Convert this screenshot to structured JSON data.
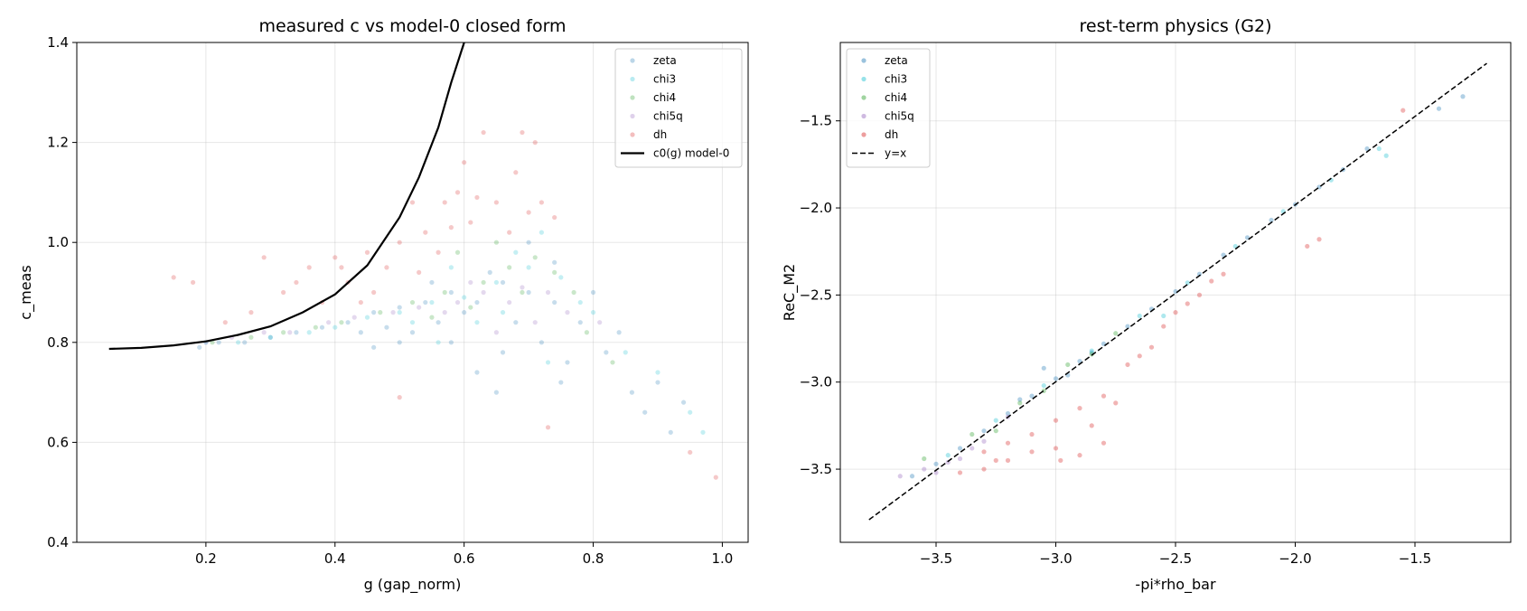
{
  "chart_data": [
    {
      "type": "scatter",
      "title": "measured c vs model-0 closed form",
      "xlabel": "g (gap_norm)",
      "ylabel": "c_meas",
      "xlim": [
        0.0,
        1.04
      ],
      "ylim": [
        0.4,
        1.4
      ],
      "xticks": [
        0.2,
        0.4,
        0.6,
        0.8,
        1.0
      ],
      "xtick_labels": [
        "0.2",
        "0.4",
        "0.6",
        "0.8",
        "1.0"
      ],
      "yticks": [
        0.4,
        0.6,
        0.8,
        1.0,
        1.2,
        1.4
      ],
      "ytick_labels": [
        "0.4",
        "0.6",
        "0.8",
        "1.0",
        "1.2",
        "1.4"
      ],
      "grid": true,
      "legend_position": "upper right",
      "series": [
        {
          "name": "zeta",
          "color": "#1f77b4",
          "points": [
            [
              0.19,
              0.79
            ],
            [
              0.22,
              0.8
            ],
            [
              0.26,
              0.8
            ],
            [
              0.3,
              0.81
            ],
            [
              0.34,
              0.82
            ],
            [
              0.38,
              0.83
            ],
            [
              0.42,
              0.84
            ],
            [
              0.46,
              0.86
            ],
            [
              0.5,
              0.87
            ],
            [
              0.54,
              0.88
            ],
            [
              0.58,
              0.9
            ],
            [
              0.62,
              0.88
            ],
            [
              0.66,
              0.92
            ],
            [
              0.7,
              0.9
            ],
            [
              0.74,
              0.88
            ],
            [
              0.78,
              0.84
            ],
            [
              0.62,
              0.74
            ],
            [
              0.66,
              0.78
            ],
            [
              0.72,
              0.8
            ],
            [
              0.76,
              0.76
            ],
            [
              0.82,
              0.78
            ],
            [
              0.86,
              0.7
            ],
            [
              0.88,
              0.66
            ],
            [
              0.92,
              0.62
            ],
            [
              0.58,
              0.8
            ],
            [
              0.52,
              0.82
            ],
            [
              0.68,
              0.84
            ],
            [
              0.74,
              0.96
            ],
            [
              0.7,
              1.0
            ],
            [
              0.64,
              0.94
            ],
            [
              0.6,
              0.86
            ],
            [
              0.56,
              0.84
            ],
            [
              0.48,
              0.83
            ],
            [
              0.44,
              0.82
            ],
            [
              0.8,
              0.9
            ],
            [
              0.84,
              0.82
            ],
            [
              0.9,
              0.72
            ],
            [
              0.94,
              0.68
            ],
            [
              0.55,
              0.92
            ],
            [
              0.65,
              0.7
            ],
            [
              0.75,
              0.72
            ],
            [
              0.5,
              0.8
            ],
            [
              0.46,
              0.79
            ]
          ]
        },
        {
          "name": "chi3",
          "color": "#17becf",
          "points": [
            [
              0.2,
              0.8
            ],
            [
              0.25,
              0.8
            ],
            [
              0.3,
              0.81
            ],
            [
              0.36,
              0.82
            ],
            [
              0.4,
              0.83
            ],
            [
              0.45,
              0.85
            ],
            [
              0.5,
              0.86
            ],
            [
              0.55,
              0.88
            ],
            [
              0.6,
              0.89
            ],
            [
              0.65,
              0.92
            ],
            [
              0.7,
              0.95
            ],
            [
              0.75,
              0.93
            ],
            [
              0.78,
              0.88
            ],
            [
              0.68,
              0.98
            ],
            [
              0.72,
              1.02
            ],
            [
              0.62,
              0.84
            ],
            [
              0.56,
              0.8
            ],
            [
              0.8,
              0.86
            ],
            [
              0.85,
              0.78
            ],
            [
              0.9,
              0.74
            ],
            [
              0.95,
              0.66
            ],
            [
              0.97,
              0.62
            ],
            [
              0.73,
              0.76
            ],
            [
              0.66,
              0.86
            ],
            [
              0.58,
              0.95
            ],
            [
              0.52,
              0.84
            ]
          ]
        },
        {
          "name": "chi4",
          "color": "#2ca02c",
          "points": [
            [
              0.21,
              0.8
            ],
            [
              0.27,
              0.81
            ],
            [
              0.32,
              0.82
            ],
            [
              0.37,
              0.83
            ],
            [
              0.41,
              0.84
            ],
            [
              0.47,
              0.86
            ],
            [
              0.52,
              0.88
            ],
            [
              0.57,
              0.9
            ],
            [
              0.63,
              0.92
            ],
            [
              0.67,
              0.95
            ],
            [
              0.71,
              0.97
            ],
            [
              0.74,
              0.94
            ],
            [
              0.69,
              0.9
            ],
            [
              0.61,
              0.87
            ],
            [
              0.55,
              0.85
            ],
            [
              0.77,
              0.9
            ],
            [
              0.79,
              0.82
            ],
            [
              0.83,
              0.76
            ],
            [
              0.65,
              1.0
            ],
            [
              0.59,
              0.98
            ]
          ]
        },
        {
          "name": "chi5q",
          "color": "#9467bd",
          "points": [
            [
              0.2,
              0.8
            ],
            [
              0.24,
              0.81
            ],
            [
              0.29,
              0.82
            ],
            [
              0.33,
              0.82
            ],
            [
              0.39,
              0.84
            ],
            [
              0.43,
              0.85
            ],
            [
              0.49,
              0.86
            ],
            [
              0.53,
              0.87
            ],
            [
              0.59,
              0.88
            ],
            [
              0.63,
              0.9
            ],
            [
              0.69,
              0.91
            ],
            [
              0.73,
              0.9
            ],
            [
              0.76,
              0.86
            ],
            [
              0.67,
              0.88
            ],
            [
              0.61,
              0.92
            ],
            [
              0.57,
              0.86
            ],
            [
              0.81,
              0.84
            ],
            [
              0.71,
              0.84
            ],
            [
              0.65,
              0.82
            ]
          ]
        },
        {
          "name": "dh",
          "color": "#d62728",
          "points": [
            [
              0.15,
              0.93
            ],
            [
              0.18,
              0.92
            ],
            [
              0.23,
              0.84
            ],
            [
              0.27,
              0.86
            ],
            [
              0.29,
              0.97
            ],
            [
              0.32,
              0.9
            ],
            [
              0.34,
              0.92
            ],
            [
              0.36,
              0.95
            ],
            [
              0.38,
              0.88
            ],
            [
              0.4,
              0.97
            ],
            [
              0.42,
              0.92
            ],
            [
              0.45,
              0.98
            ],
            [
              0.46,
              0.9
            ],
            [
              0.48,
              0.95
            ],
            [
              0.5,
              1.0
            ],
            [
              0.52,
              1.08
            ],
            [
              0.54,
              1.02
            ],
            [
              0.56,
              0.98
            ],
            [
              0.57,
              1.08
            ],
            [
              0.59,
              1.1
            ],
            [
              0.6,
              1.16
            ],
            [
              0.61,
              1.04
            ],
            [
              0.62,
              1.09
            ],
            [
              0.63,
              1.22
            ],
            [
              0.65,
              1.08
            ],
            [
              0.67,
              1.02
            ],
            [
              0.68,
              1.14
            ],
            [
              0.69,
              1.22
            ],
            [
              0.7,
              1.06
            ],
            [
              0.71,
              1.2
            ],
            [
              0.72,
              1.08
            ],
            [
              0.74,
              1.05
            ],
            [
              0.58,
              1.03
            ],
            [
              0.53,
              0.94
            ],
            [
              0.44,
              0.88
            ],
            [
              0.5,
              0.69
            ],
            [
              0.73,
              0.63
            ],
            [
              0.99,
              0.53
            ],
            [
              0.95,
              0.58
            ],
            [
              0.41,
              0.95
            ]
          ]
        }
      ],
      "line": {
        "name": "c0(g) model-0",
        "color": "#000000",
        "points": [
          [
            0.05,
            0.787
          ],
          [
            0.1,
            0.789
          ],
          [
            0.15,
            0.794
          ],
          [
            0.2,
            0.802
          ],
          [
            0.25,
            0.815
          ],
          [
            0.3,
            0.832
          ],
          [
            0.35,
            0.86
          ],
          [
            0.4,
            0.896
          ],
          [
            0.45,
            0.954
          ],
          [
            0.5,
            1.05
          ],
          [
            0.53,
            1.13
          ],
          [
            0.56,
            1.23
          ],
          [
            0.58,
            1.32
          ],
          [
            0.6,
            1.4
          ]
        ]
      }
    },
    {
      "type": "scatter",
      "title": "rest-term physics (G2)",
      "xlabel": "-pi*rho_bar",
      "ylabel": "ReC_M2",
      "xlim": [
        -3.9,
        -1.1
      ],
      "ylim": [
        -3.92,
        -1.05
      ],
      "xticks": [
        -3.5,
        -3.0,
        -2.5,
        -2.0,
        -1.5
      ],
      "xtick_labels": [
        "−3.5",
        "−3.0",
        "−2.5",
        "−2.0",
        "−1.5"
      ],
      "yticks": [
        -3.5,
        -3.0,
        -2.5,
        -2.0,
        -1.5
      ],
      "ytick_labels": [
        "−3.5",
        "−3.0",
        "−2.5",
        "−2.0",
        "−1.5"
      ],
      "grid": true,
      "legend_position": "upper left",
      "series": [
        {
          "name": "zeta",
          "color": "#1f77b4",
          "points": [
            [
              -3.6,
              -3.54
            ],
            [
              -3.5,
              -3.47
            ],
            [
              -3.4,
              -3.38
            ],
            [
              -3.3,
              -3.28
            ],
            [
              -3.2,
              -3.18
            ],
            [
              -3.1,
              -3.08
            ],
            [
              -3.0,
              -2.98
            ],
            [
              -2.9,
              -2.88
            ],
            [
              -2.8,
              -2.78
            ],
            [
              -2.7,
              -2.68
            ],
            [
              -2.6,
              -2.58
            ],
            [
              -2.5,
              -2.48
            ],
            [
              -2.4,
              -2.38
            ],
            [
              -2.3,
              -2.27
            ],
            [
              -2.2,
              -2.17
            ],
            [
              -2.1,
              -2.07
            ],
            [
              -2.0,
              -1.98
            ],
            [
              -1.9,
              -1.88
            ],
            [
              -1.8,
              -1.78
            ],
            [
              -1.7,
              -1.66
            ],
            [
              -1.4,
              -1.43
            ],
            [
              -1.3,
              -1.36
            ],
            [
              -3.05,
              -2.92
            ],
            [
              -2.95,
              -2.96
            ],
            [
              -3.15,
              -3.1
            ],
            [
              -2.85,
              -2.83
            ]
          ]
        },
        {
          "name": "chi3",
          "color": "#17becf",
          "points": [
            [
              -3.45,
              -3.42
            ],
            [
              -3.25,
              -3.22
            ],
            [
              -3.05,
              -3.02
            ],
            [
              -2.85,
              -2.82
            ],
            [
              -2.65,
              -2.62
            ],
            [
              -2.45,
              -2.43
            ],
            [
              -2.25,
              -2.22
            ],
            [
              -2.05,
              -2.02
            ],
            [
              -1.85,
              -1.84
            ],
            [
              -1.65,
              -1.66
            ],
            [
              -1.62,
              -1.7
            ],
            [
              -2.55,
              -2.62
            ]
          ]
        },
        {
          "name": "chi4",
          "color": "#2ca02c",
          "points": [
            [
              -3.55,
              -3.44
            ],
            [
              -3.35,
              -3.3
            ],
            [
              -3.15,
              -3.12
            ],
            [
              -2.95,
              -2.9
            ],
            [
              -2.75,
              -2.72
            ],
            [
              -3.25,
              -3.28
            ],
            [
              -3.05,
              -3.05
            ],
            [
              -2.85,
              -2.84
            ]
          ]
        },
        {
          "name": "chi5q",
          "color": "#9467bd",
          "points": [
            [
              -3.65,
              -3.54
            ],
            [
              -3.55,
              -3.5
            ],
            [
              -3.45,
              -3.46
            ],
            [
              -3.35,
              -3.38
            ],
            [
              -3.5,
              -3.52
            ],
            [
              -3.4,
              -3.44
            ],
            [
              -3.3,
              -3.34
            ],
            [
              -3.2,
              -3.2
            ]
          ]
        },
        {
          "name": "dh",
          "color": "#d62728",
          "points": [
            [
              -3.4,
              -3.52
            ],
            [
              -3.3,
              -3.5
            ],
            [
              -3.2,
              -3.45
            ],
            [
              -3.1,
              -3.4
            ],
            [
              -3.0,
              -3.38
            ],
            [
              -2.9,
              -3.42
            ],
            [
              -2.8,
              -3.35
            ],
            [
              -3.3,
              -3.4
            ],
            [
              -3.2,
              -3.35
            ],
            [
              -3.1,
              -3.3
            ],
            [
              -3.0,
              -3.22
            ],
            [
              -2.9,
              -3.15
            ],
            [
              -2.8,
              -3.08
            ],
            [
              -2.75,
              -3.12
            ],
            [
              -2.7,
              -2.9
            ],
            [
              -2.65,
              -2.85
            ],
            [
              -2.6,
              -2.8
            ],
            [
              -2.55,
              -2.68
            ],
            [
              -2.5,
              -2.6
            ],
            [
              -2.45,
              -2.55
            ],
            [
              -2.4,
              -2.5
            ],
            [
              -2.35,
              -2.42
            ],
            [
              -2.3,
              -2.38
            ],
            [
              -1.95,
              -2.22
            ],
            [
              -1.9,
              -2.18
            ],
            [
              -1.55,
              -1.44
            ],
            [
              -2.98,
              -3.45
            ],
            [
              -3.25,
              -3.45
            ],
            [
              -2.85,
              -3.25
            ]
          ]
        }
      ],
      "line": {
        "name": "y=x",
        "color": "#000000",
        "dashed": true,
        "points": [
          [
            -3.78,
            -3.79
          ],
          [
            -1.2,
            -1.17
          ]
        ]
      }
    }
  ]
}
